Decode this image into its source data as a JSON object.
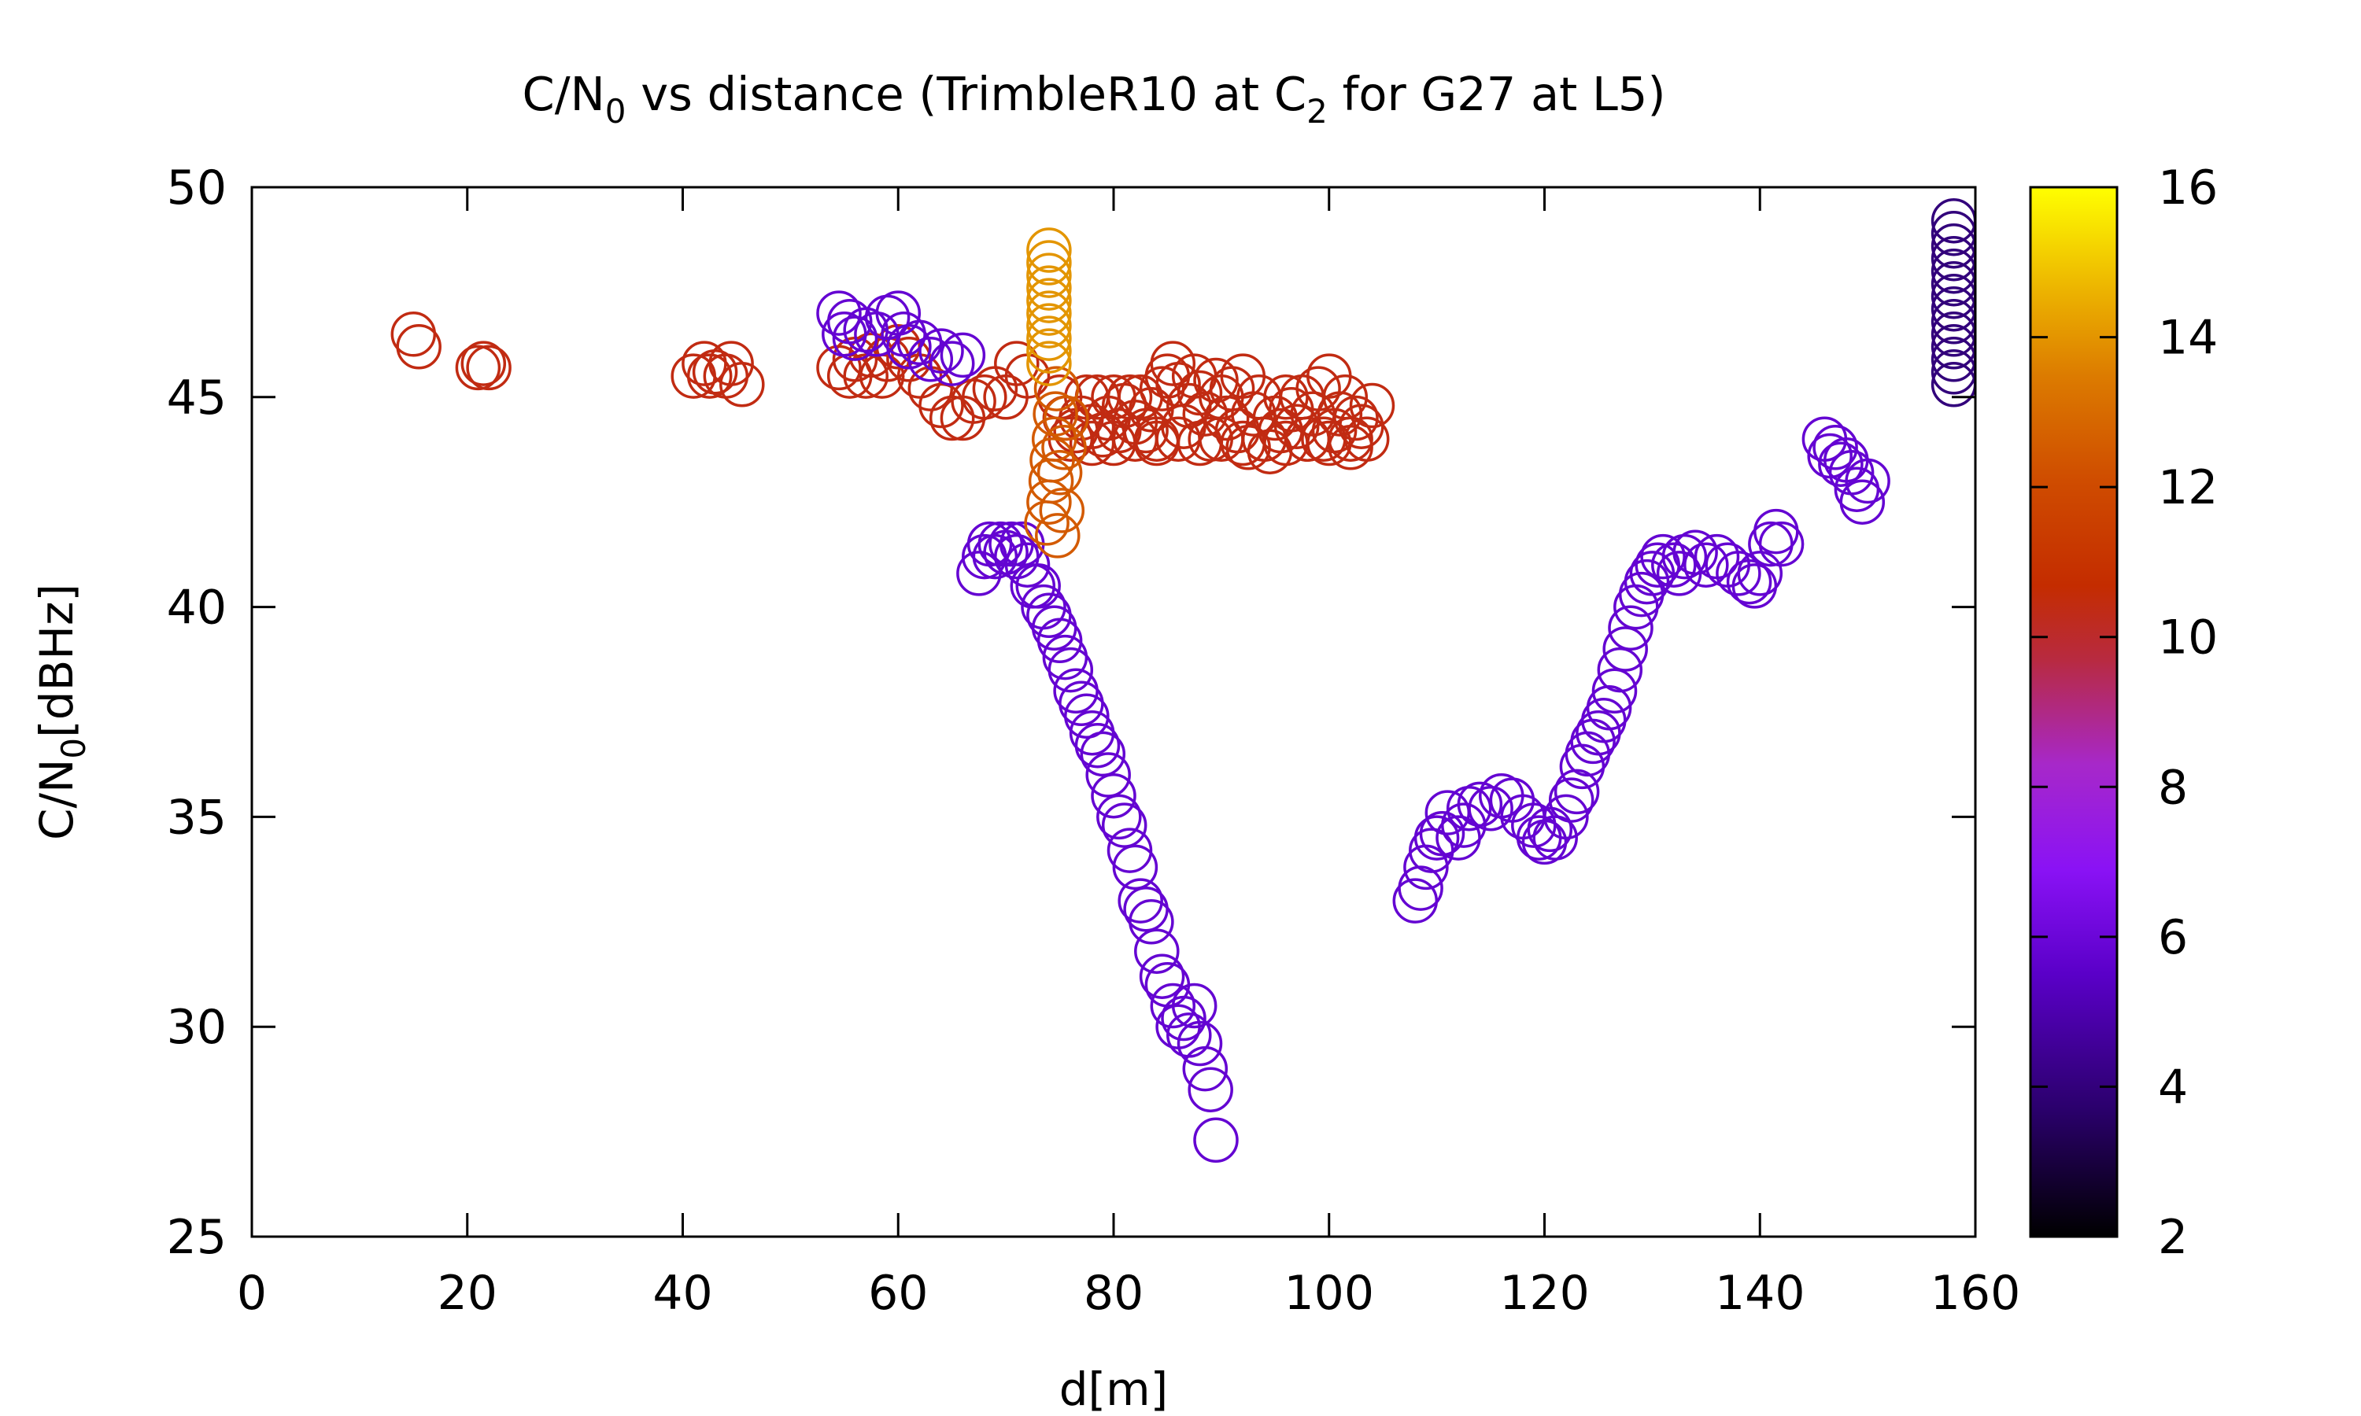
{
  "chart_data": {
    "type": "scatter",
    "title": {
      "text": "C/N0 vs distance (TrimbleR10 at C2 for G27 at L5)",
      "parts": [
        "C/N",
        "0",
        " vs distance (TrimbleR10 at C",
        "2",
        " for G27 at L5)"
      ]
    },
    "xlabel": "d[m]",
    "ylabel": {
      "text": "C/N0[dBHz]",
      "parts": [
        "C/N",
        "0",
        "[dBHz]"
      ]
    },
    "xlim": [
      0,
      160
    ],
    "ylim": [
      25,
      50
    ],
    "xticks": [
      "0",
      "20",
      "40",
      "60",
      "80",
      "100",
      "120",
      "140",
      "160"
    ],
    "yticks": [
      "25",
      "30",
      "35",
      "40",
      "45",
      "50"
    ],
    "colorbar": {
      "range": [
        2,
        16
      ],
      "ticks": [
        "2",
        "4",
        "6",
        "8",
        "10",
        "12",
        "14",
        "16"
      ],
      "palette": [
        "#000000",
        "#2a006b",
        "#5a00c8",
        "#8a12f5",
        "#a728c9",
        "#b82a40",
        "#c42c00",
        "#cf4c00",
        "#dc7b00",
        "#ecb200",
        "#ffff00"
      ]
    },
    "marker": "open-circle",
    "grid": false,
    "legend": "none",
    "series": [
      {
        "color_value": 10.4,
        "points": [
          [
            15,
            46.5
          ],
          [
            15.5,
            46.2
          ],
          [
            21,
            45.7
          ],
          [
            21.5,
            45.8
          ],
          [
            22,
            45.7
          ],
          [
            41,
            45.5
          ],
          [
            42,
            45.8
          ],
          [
            42.5,
            45.5
          ],
          [
            43,
            45.6
          ],
          [
            44,
            45.5
          ],
          [
            44.5,
            45.8
          ],
          [
            45.5,
            45.3
          ],
          [
            54.5,
            45.7
          ],
          [
            55.5,
            45.5
          ],
          [
            56,
            45.9
          ],
          [
            57,
            45.5
          ],
          [
            57.5,
            46
          ],
          [
            58.5,
            45.5
          ],
          [
            59,
            45.9
          ],
          [
            60,
            46.2
          ],
          [
            61,
            45.9
          ],
          [
            62,
            45.5
          ],
          [
            63,
            45.2
          ],
          [
            64,
            44.8
          ],
          [
            65,
            44.5
          ],
          [
            66,
            44.5
          ],
          [
            67,
            44.9
          ],
          [
            68,
            45
          ],
          [
            69,
            45.2
          ],
          [
            70,
            45
          ],
          [
            71,
            45.8
          ],
          [
            72,
            45.5
          ],
          [
            75,
            45
          ],
          [
            75.5,
            44.5
          ],
          [
            76,
            44
          ],
          [
            76.5,
            44.2
          ],
          [
            77,
            44.5
          ],
          [
            77.5,
            45
          ],
          [
            78,
            44.3
          ],
          [
            78.5,
            45
          ],
          [
            79,
            44.1
          ],
          [
            79.5,
            44.5
          ],
          [
            80,
            45
          ],
          [
            80.5,
            44.2
          ],
          [
            81,
            44.8
          ],
          [
            81.5,
            45
          ],
          [
            82,
            44.4
          ],
          [
            82.5,
            45
          ],
          [
            83,
            44.2
          ],
          [
            83.5,
            44.7
          ],
          [
            84,
            44
          ],
          [
            84.5,
            45.2
          ],
          [
            85,
            45.5
          ],
          [
            85.5,
            45.8
          ],
          [
            86,
            45.3
          ],
          [
            86.5,
            44.3
          ],
          [
            87,
            44.8
          ],
          [
            87.5,
            45.5
          ],
          [
            88,
            45.1
          ],
          [
            88.5,
            44.6
          ],
          [
            89,
            44
          ],
          [
            89.5,
            45.4
          ],
          [
            90,
            45
          ],
          [
            90.5,
            44.5
          ],
          [
            91,
            45.2
          ],
          [
            91.5,
            44.2
          ],
          [
            92,
            45.5
          ],
          [
            92.5,
            43.8
          ],
          [
            93,
            44.6
          ],
          [
            93.5,
            45
          ],
          [
            94,
            44
          ],
          [
            94.5,
            43.7
          ],
          [
            95,
            44.5
          ],
          [
            95.5,
            44.2
          ],
          [
            96,
            45
          ],
          [
            96.5,
            44.7
          ],
          [
            97,
            44.3
          ],
          [
            97.5,
            45
          ],
          [
            98,
            44
          ],
          [
            98.5,
            44.6
          ],
          [
            99,
            45.2
          ],
          [
            99.5,
            44
          ],
          [
            100,
            45.5
          ],
          [
            100.5,
            44.2
          ],
          [
            101,
            44.6
          ],
          [
            101.5,
            45
          ],
          [
            102,
            44
          ],
          [
            102.5,
            44.5
          ],
          [
            103,
            44.3
          ],
          [
            103.5,
            44
          ],
          [
            104,
            44.8
          ],
          [
            78,
            43.9
          ],
          [
            80,
            43.9
          ],
          [
            82,
            44
          ],
          [
            84,
            43.9
          ],
          [
            86,
            44
          ],
          [
            88,
            43.9
          ],
          [
            90,
            44
          ],
          [
            92,
            43.9
          ],
          [
            94,
            44
          ],
          [
            96,
            43.9
          ],
          [
            98,
            44
          ],
          [
            100,
            43.9
          ],
          [
            102,
            43.8
          ]
        ]
      },
      {
        "color_value": 5.8,
        "points": [
          [
            54.5,
            47
          ],
          [
            55,
            46.5
          ],
          [
            55.5,
            46.8
          ],
          [
            56,
            46.4
          ],
          [
            57,
            46.6
          ],
          [
            58,
            46.5
          ],
          [
            59,
            46.9
          ],
          [
            60,
            47
          ],
          [
            60.5,
            46.5
          ],
          [
            61,
            46.2
          ],
          [
            62,
            46.3
          ],
          [
            63,
            45.9
          ],
          [
            64,
            46.1
          ],
          [
            65,
            45.8
          ],
          [
            66,
            46
          ],
          [
            67.5,
            40.8
          ],
          [
            68,
            41.2
          ],
          [
            68.5,
            41.5
          ],
          [
            69,
            41.2
          ],
          [
            69.5,
            41.5
          ],
          [
            70,
            41.3
          ],
          [
            70.5,
            41.5
          ],
          [
            71,
            41.2
          ],
          [
            71.5,
            41.5
          ],
          [
            72,
            41
          ],
          [
            72.5,
            40.5
          ],
          [
            73,
            40.5
          ],
          [
            73.5,
            40
          ],
          [
            74,
            39.8
          ],
          [
            74.5,
            39.5
          ],
          [
            75,
            39.2
          ],
          [
            75.5,
            38.8
          ],
          [
            76,
            38.5
          ],
          [
            76.5,
            38
          ],
          [
            77,
            37.7
          ],
          [
            77.5,
            37.4
          ],
          [
            78,
            37
          ],
          [
            78.5,
            36.7
          ],
          [
            79,
            36.5
          ],
          [
            79.5,
            36
          ],
          [
            80,
            35.5
          ],
          [
            80.5,
            35
          ],
          [
            81,
            34.8
          ],
          [
            81.5,
            34.2
          ],
          [
            82,
            33.8
          ],
          [
            82.5,
            33
          ],
          [
            83,
            32.8
          ],
          [
            83.5,
            32.5
          ],
          [
            84,
            31.8
          ],
          [
            84.5,
            31.2
          ],
          [
            85,
            31
          ],
          [
            85.5,
            30.5
          ],
          [
            86,
            30
          ],
          [
            86.5,
            30.2
          ],
          [
            87,
            29.8
          ],
          [
            87.5,
            30.5
          ],
          [
            88,
            29.6
          ],
          [
            88.5,
            29
          ],
          [
            89,
            28.5
          ],
          [
            89.5,
            27.3
          ],
          [
            108,
            33
          ],
          [
            108.5,
            33.3
          ],
          [
            109,
            33.8
          ],
          [
            109.5,
            34.2
          ],
          [
            110,
            34.5
          ],
          [
            110.5,
            34.6
          ],
          [
            111,
            35.1
          ],
          [
            112,
            34.5
          ],
          [
            112.5,
            34.8
          ],
          [
            113,
            35.2
          ],
          [
            114,
            35.3
          ],
          [
            115,
            35.2
          ],
          [
            116,
            35.5
          ],
          [
            117,
            35.4
          ],
          [
            118,
            35
          ],
          [
            119,
            34.8
          ],
          [
            119.5,
            34.5
          ],
          [
            120,
            34.4
          ],
          [
            120.5,
            34.7
          ],
          [
            121,
            34.5
          ],
          [
            122,
            35
          ],
          [
            122.5,
            35.4
          ],
          [
            123,
            35.6
          ],
          [
            123.5,
            36.2
          ],
          [
            124,
            36.5
          ],
          [
            124.5,
            36.8
          ],
          [
            125,
            37
          ],
          [
            125.5,
            37.3
          ],
          [
            126,
            37.6
          ],
          [
            126.5,
            38
          ],
          [
            127,
            38.5
          ],
          [
            127.5,
            39
          ],
          [
            128,
            39.5
          ],
          [
            128.5,
            40
          ],
          [
            129,
            40.3
          ],
          [
            129.5,
            40.6
          ],
          [
            130,
            40.8
          ],
          [
            130.5,
            41
          ],
          [
            131,
            41.2
          ],
          [
            132,
            41
          ],
          [
            132.5,
            40.8
          ],
          [
            133,
            41.2
          ],
          [
            134,
            41.3
          ],
          [
            135,
            41
          ],
          [
            136,
            41.2
          ],
          [
            137,
            41
          ],
          [
            138,
            40.8
          ],
          [
            139,
            40.6
          ],
          [
            139.5,
            40.5
          ],
          [
            140,
            40.8
          ],
          [
            141,
            41.5
          ],
          [
            141.5,
            41.8
          ],
          [
            142,
            41.5
          ],
          [
            146,
            44
          ],
          [
            146.5,
            43.6
          ],
          [
            147,
            43.8
          ],
          [
            147.5,
            43.4
          ],
          [
            148,
            43.5
          ],
          [
            148.5,
            43.2
          ],
          [
            149,
            42.8
          ],
          [
            149.5,
            42.5
          ],
          [
            150,
            43
          ]
        ]
      },
      {
        "color_value": 12.5,
        "points": [
          [
            73.8,
            42
          ],
          [
            74,
            42.5
          ],
          [
            74.2,
            43
          ],
          [
            74.3,
            43.5
          ],
          [
            74.5,
            44
          ],
          [
            74.6,
            44.6
          ],
          [
            74.7,
            45.2
          ],
          [
            74.8,
            41.7
          ],
          [
            75,
            43.2
          ],
          [
            75.2,
            42.3
          ],
          [
            75.4,
            43.8
          ],
          [
            75.6,
            44.5
          ]
        ]
      },
      {
        "color_value": 14.0,
        "points": [
          [
            74,
            45.8
          ],
          [
            74,
            46.1
          ],
          [
            74,
            46.4
          ],
          [
            74,
            46.7
          ],
          [
            74,
            47
          ],
          [
            74,
            47.3
          ],
          [
            74,
            47.6
          ],
          [
            74,
            47.9
          ],
          [
            74,
            48.2
          ],
          [
            74,
            48.5
          ]
        ]
      },
      {
        "color_value": 4.0,
        "points": [
          [
            158,
            45.3
          ],
          [
            158,
            45.6
          ],
          [
            158,
            45.9
          ],
          [
            158,
            46.2
          ],
          [
            158,
            46.5
          ],
          [
            158,
            46.8
          ],
          [
            158,
            47.1
          ],
          [
            158,
            47.4
          ],
          [
            158,
            47.7
          ],
          [
            158,
            48
          ],
          [
            158,
            48.3
          ],
          [
            158,
            48.6
          ],
          [
            158,
            48.9
          ],
          [
            158,
            49.2
          ]
        ]
      }
    ]
  }
}
